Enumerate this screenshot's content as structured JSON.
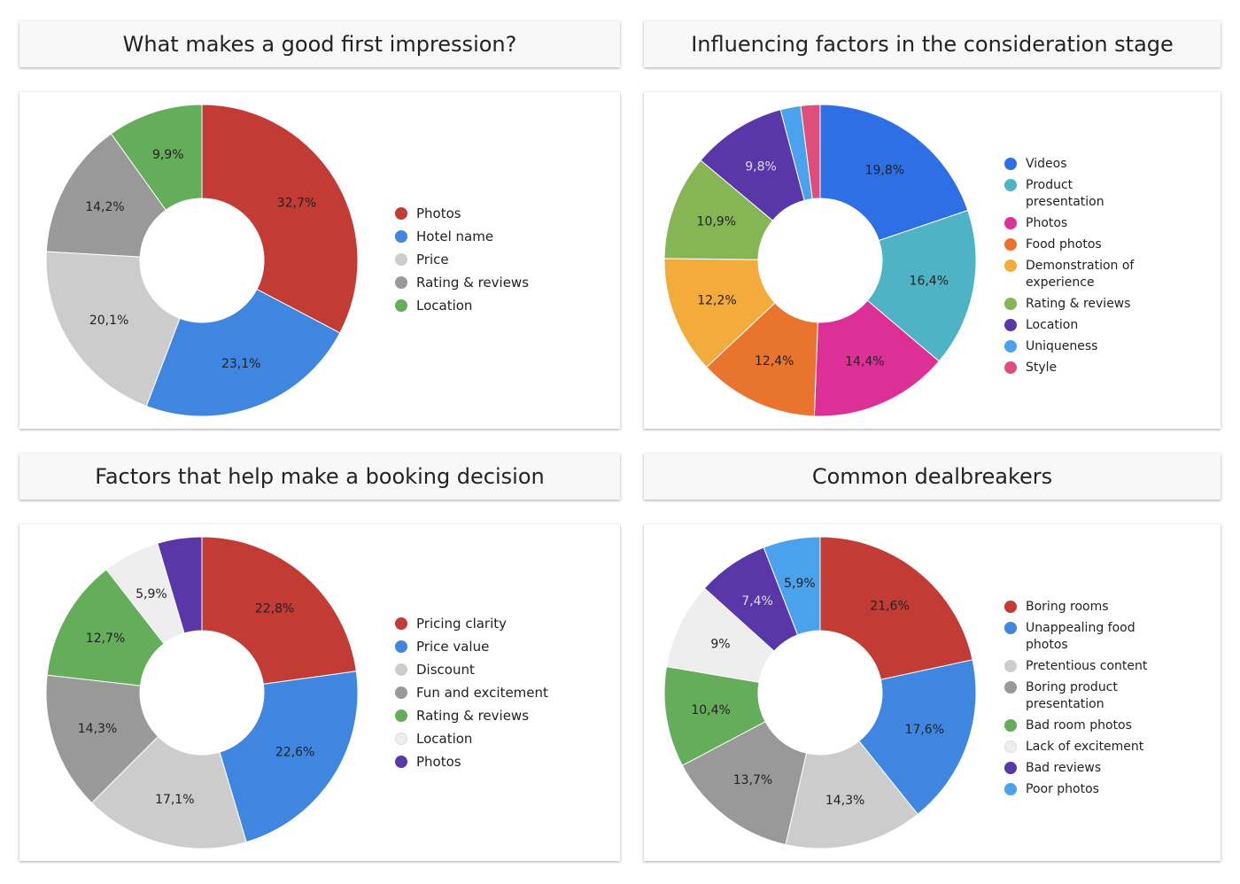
{
  "chart_data": [
    {
      "type": "pie",
      "title": "What makes a good first impression?",
      "categories": [
        "Photos",
        "Hotel name",
        "Price",
        "Rating & reviews",
        "Location"
      ],
      "values": [
        32.7,
        23.1,
        20.1,
        14.2,
        9.9
      ],
      "value_labels": [
        "32,7%",
        "23,1%",
        "20,1%",
        "14,2%",
        "9,9%"
      ],
      "colors": [
        "#c23b35",
        "#3f86e0",
        "#cccccc",
        "#999999",
        "#64ad5a"
      ],
      "label_colors": [
        "#222222",
        "#222222",
        "#222222",
        "#222222",
        "#222222"
      ],
      "legend_position": "right",
      "donut": true
    },
    {
      "type": "pie",
      "title": "Influencing factors in the consideration stage",
      "categories": [
        "Videos",
        "Product presentation",
        "Photos",
        "Food photos",
        "Demonstration of experience",
        "Rating & reviews",
        "Location",
        "Uniqueness",
        "Style"
      ],
      "values": [
        19.8,
        16.4,
        14.4,
        12.4,
        12.2,
        10.9,
        9.8,
        2.1,
        2.0
      ],
      "value_labels": [
        "19,8%",
        "16,4%",
        "14,4%",
        "12,4%",
        "12,2%",
        "10,9%",
        "9,8%",
        "",
        ""
      ],
      "colors": [
        "#2f6fe6",
        "#4eb4c5",
        "#dc3097",
        "#e8742d",
        "#f3ac3c",
        "#86b554",
        "#5a37a8",
        "#4ba2ec",
        "#dd4f7a"
      ],
      "label_colors": [
        "#222222",
        "#222222",
        "#222222",
        "#222222",
        "#222222",
        "#222222",
        "#dddddd",
        "#222222",
        "#222222"
      ],
      "legend_position": "right",
      "donut": true
    },
    {
      "type": "pie",
      "title": "Factors that help make a booking decision",
      "categories": [
        "Pricing clarity",
        "Price value",
        "Discount",
        "Fun and excitement",
        "Rating & reviews",
        "Location",
        "Photos"
      ],
      "values": [
        22.8,
        22.6,
        17.1,
        14.3,
        12.7,
        5.9,
        4.6
      ],
      "value_labels": [
        "22,8%",
        "22,6%",
        "17,1%",
        "14,3%",
        "12,7%",
        "5,9%",
        ""
      ],
      "colors": [
        "#c23b35",
        "#3f86e0",
        "#cccccc",
        "#999999",
        "#64ad5a",
        "#eeeeee",
        "#5a37a8"
      ],
      "label_colors": [
        "#222222",
        "#222222",
        "#222222",
        "#222222",
        "#222222",
        "#222222",
        "#ffffff"
      ],
      "legend_position": "right",
      "donut": true
    },
    {
      "type": "pie",
      "title": "Common dealbreakers",
      "categories": [
        "Boring rooms",
        "Unappealing food photos",
        "Pretentious content",
        "Boring product presentation",
        "Bad room photos",
        "Lack of excitement",
        "Bad reviews",
        "Poor photos"
      ],
      "values": [
        21.6,
        17.6,
        14.3,
        13.7,
        10.4,
        9.0,
        7.4,
        5.9
      ],
      "value_labels": [
        "21,6%",
        "17,6%",
        "14,3%",
        "13,7%",
        "10,4%",
        "9%",
        "7,4%",
        "5,9%"
      ],
      "colors": [
        "#c23b35",
        "#3f86e0",
        "#cccccc",
        "#999999",
        "#64ad5a",
        "#eeeeee",
        "#5a37a8",
        "#4ba2ec"
      ],
      "label_colors": [
        "#222222",
        "#222222",
        "#222222",
        "#222222",
        "#222222",
        "#222222",
        "#dddddd",
        "#222222"
      ],
      "legend_position": "right",
      "donut": true
    }
  ]
}
